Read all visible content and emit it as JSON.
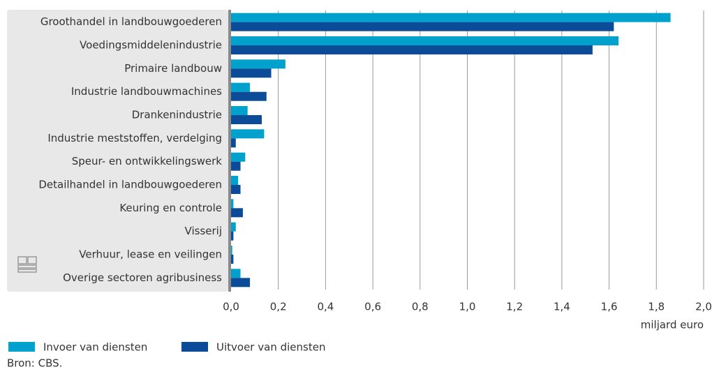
{
  "chart_data": {
    "type": "hbar",
    "categories": [
      "Groothandel in landbouwgoederen",
      "Voedingsmiddelenindustrie",
      "Primaire landbouw",
      "Industrie landbouwmachines",
      "Drankenindustrie",
      "Industrie meststoffen, verdelging",
      "Speur- en ontwikkelingswerk",
      "Detailhandel in landbouwgoederen",
      "Keuring en controle",
      "Visserij",
      "Verhuur, lease en veilingen",
      "Overige sectoren agribusiness"
    ],
    "series": [
      {
        "name": "Invoer van diensten",
        "color": "#00a1cd",
        "values": [
          1.86,
          1.64,
          0.23,
          0.08,
          0.07,
          0.14,
          0.06,
          0.03,
          0.01,
          0.02,
          0.005,
          0.04
        ]
      },
      {
        "name": "Uitvoer van diensten",
        "color": "#0b4b98",
        "values": [
          1.62,
          1.53,
          0.17,
          0.15,
          0.13,
          0.02,
          0.04,
          0.04,
          0.05,
          0.01,
          0.01,
          0.08
        ]
      }
    ],
    "xlim": [
      0,
      2.0
    ],
    "xticks": [
      {
        "value": 0,
        "label": "0,0"
      },
      {
        "value": 0.2,
        "label": "0,2"
      },
      {
        "value": 0.4,
        "label": "0,4"
      },
      {
        "value": 0.6,
        "label": "0,6"
      },
      {
        "value": 0.8,
        "label": "0,8"
      },
      {
        "value": 1.0,
        "label": "1,0"
      },
      {
        "value": 1.2,
        "label": "1,2"
      },
      {
        "value": 1.4,
        "label": "1,4"
      },
      {
        "value": 1.6,
        "label": "1,6"
      },
      {
        "value": 1.8,
        "label": "1,8"
      },
      {
        "value": 2.0,
        "label": "2,0"
      }
    ],
    "xlabel": "miljard euro",
    "grid": true,
    "source": "Bron: CBS."
  }
}
